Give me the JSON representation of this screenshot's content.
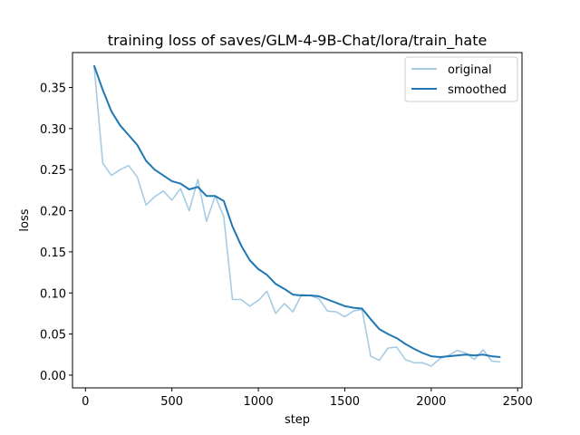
{
  "chart_data": {
    "type": "line",
    "title": "training loss of saves/GLM-4-9B-Chat/lora/train_hate",
    "xlabel": "step",
    "ylabel": "loss",
    "xlim": [
      -75,
      2525
    ],
    "ylim": [
      -0.0155,
      0.3925
    ],
    "x_ticks": [
      0,
      500,
      1000,
      1500,
      2000,
      2500
    ],
    "y_ticks": [
      0.0,
      0.05,
      0.1,
      0.15,
      0.2,
      0.25,
      0.3,
      0.35
    ],
    "grid": false,
    "legend_position": "top-right",
    "x": [
      50,
      100,
      150,
      200,
      250,
      300,
      350,
      400,
      450,
      500,
      550,
      600,
      650,
      700,
      750,
      800,
      850,
      900,
      950,
      1000,
      1050,
      1100,
      1150,
      1200,
      1250,
      1300,
      1350,
      1400,
      1450,
      1500,
      1550,
      1600,
      1650,
      1700,
      1750,
      1800,
      1850,
      1900,
      1950,
      2000,
      2050,
      2100,
      2150,
      2200,
      2250,
      2300,
      2350,
      2400
    ],
    "series": [
      {
        "name": "original",
        "color": "#a6cbe3",
        "values": [
          0.377,
          0.258,
          0.243,
          0.25,
          0.255,
          0.241,
          0.207,
          0.217,
          0.224,
          0.213,
          0.227,
          0.2,
          0.238,
          0.187,
          0.218,
          0.193,
          0.092,
          0.092,
          0.084,
          0.091,
          0.102,
          0.075,
          0.087,
          0.077,
          0.098,
          0.097,
          0.093,
          0.078,
          0.077,
          0.071,
          0.078,
          0.08,
          0.023,
          0.018,
          0.033,
          0.034,
          0.019,
          0.015,
          0.015,
          0.011,
          0.02,
          0.024,
          0.03,
          0.027,
          0.019,
          0.031,
          0.017,
          0.016
        ]
      },
      {
        "name": "smoothed",
        "color": "#1f77b4",
        "values": [
          0.377,
          0.347,
          0.321,
          0.304,
          0.292,
          0.28,
          0.261,
          0.25,
          0.243,
          0.236,
          0.233,
          0.226,
          0.229,
          0.218,
          0.218,
          0.212,
          0.181,
          0.158,
          0.14,
          0.129,
          0.122,
          0.111,
          0.105,
          0.098,
          0.097,
          0.097,
          0.096,
          0.092,
          0.088,
          0.084,
          0.082,
          0.081,
          0.068,
          0.056,
          0.05,
          0.045,
          0.038,
          0.032,
          0.027,
          0.023,
          0.022,
          0.023,
          0.024,
          0.025,
          0.024,
          0.025,
          0.023,
          0.022
        ]
      }
    ]
  }
}
